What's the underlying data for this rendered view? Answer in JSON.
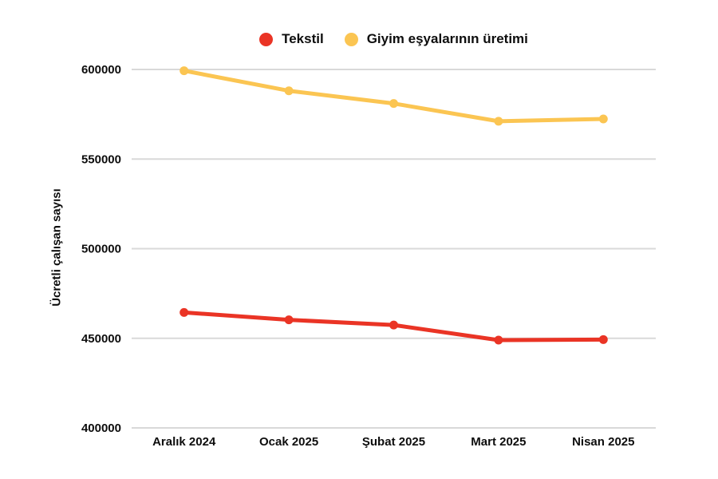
{
  "chart_data": {
    "type": "line",
    "title": "",
    "xlabel": "",
    "ylabel": "Ücretli çalışan sayısı",
    "categories": [
      "Aralık 2024",
      "Ocak 2025",
      "Şubat 2025",
      "Mart 2025",
      "Nisan 2025"
    ],
    "series": [
      {
        "name": "Tekstil",
        "color": "#EA3425",
        "values": [
          464400,
          460300,
          457400,
          449000,
          449300
        ]
      },
      {
        "name": "Giyim eşyalarının üretimi",
        "color": "#FBC552",
        "values": [
          599300,
          588100,
          581000,
          571100,
          572400
        ]
      }
    ],
    "ylim": [
      400000,
      600000
    ],
    "yticks": [
      400000,
      450000,
      500000,
      550000,
      600000
    ],
    "grid": "horizontal",
    "legend_position": "top-center"
  },
  "colors": {
    "background": "#FFFFFF",
    "grid": "#D9D9D9",
    "text": "#0D0D0D"
  }
}
